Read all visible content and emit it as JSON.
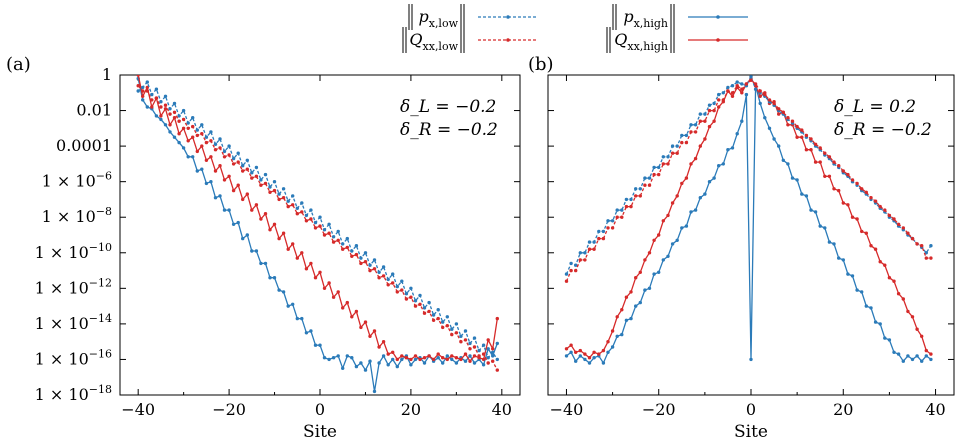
{
  "legend": [
    {
      "label": "‖p_{x,low}‖",
      "color": "#2b7bb9",
      "dash": true
    },
    {
      "label": "‖Q_{xx,low}‖",
      "color": "#d62a2a",
      "dash": true
    },
    {
      "label": "‖p_{x,high}‖",
      "color": "#2b7bb9",
      "dash": false
    },
    {
      "label": "‖Q_{xx,high}‖",
      "color": "#d62a2a",
      "dash": false
    }
  ],
  "colors": {
    "blue": "#2b7bb9",
    "red": "#d62a2a"
  },
  "chart_data": [
    {
      "type": "line",
      "panel": "(a)",
      "xlabel": "Site",
      "ylabel": "",
      "xlim": [
        -44,
        44
      ],
      "ylim": [
        1e-18,
        1
      ],
      "yscale": "log",
      "xticks": [
        -40,
        -20,
        0,
        20,
        40
      ],
      "yticks": [
        1,
        0.01,
        0.0001,
        1e-06,
        1e-08,
        1e-10,
        1e-12,
        1e-14,
        1e-16,
        1e-18
      ],
      "ytick_labels": [
        "1",
        "0.01",
        "0.0001",
        "1 × 10^{−6}",
        "1 × 10^{−8}",
        "1 × 10^{−10}",
        "1 × 10^{−12}",
        "1 × 10^{−14}",
        "1 × 10^{−16}",
        "1 × 10^{−18}"
      ],
      "annotations": [
        "δ_L = −0.2",
        "δ_R = −0.2"
      ],
      "x": [
        -40,
        -39,
        -38,
        -37,
        -36,
        -35,
        -34,
        -33,
        -32,
        -31,
        -30,
        -29,
        -28,
        -27,
        -26,
        -25,
        -24,
        -23,
        -22,
        -21,
        -20,
        -19,
        -18,
        -17,
        -16,
        -15,
        -14,
        -13,
        -12,
        -11,
        -10,
        -9,
        -8,
        -7,
        -6,
        -5,
        -4,
        -3,
        -2,
        -1,
        0,
        1,
        2,
        3,
        4,
        5,
        6,
        7,
        8,
        9,
        10,
        11,
        12,
        13,
        14,
        15,
        16,
        17,
        18,
        19,
        20,
        21,
        22,
        23,
        24,
        25,
        26,
        27,
        28,
        29,
        30,
        31,
        32,
        33,
        34,
        35,
        36,
        37,
        38,
        39
      ],
      "series": [
        {
          "name": "‖p_{x,high}‖",
          "color": "#2b7bb9",
          "dash": false,
          "log10": [
            -0.2,
            -1.4,
            -1.8,
            -1.9,
            -2.3,
            -2.5,
            -2.8,
            -3.2,
            -3.5,
            -3.8,
            -4.1,
            -4.6,
            -4.6,
            -5.4,
            -5.3,
            -6.1,
            -6.0,
            -6.9,
            -6.8,
            -7.6,
            -7.6,
            -8.4,
            -8.3,
            -9.2,
            -9.0,
            -9.9,
            -9.9,
            -10.6,
            -10.6,
            -11.4,
            -11.4,
            -12.1,
            -12.2,
            -13.0,
            -12.9,
            -13.7,
            -13.7,
            -14.5,
            -14.4,
            -15.2,
            -15.2,
            -15.9,
            -16.0,
            -15.9,
            -15.8,
            -16.5,
            -15.8,
            -15.9,
            -16.4,
            -16.2,
            -16.6,
            -16.1,
            -17.8,
            -16.2,
            -15.8,
            -16.3,
            -16.0,
            -16.4,
            -16.0,
            -15.8,
            -16.3,
            -16.0,
            -15.9,
            -16.2,
            -15.8,
            -16.1,
            -15.9,
            -16.2,
            -15.8,
            -16.0,
            -16.2,
            -15.9,
            -16.1,
            -15.8,
            -16.2,
            -16.0,
            -16.3,
            -15.4,
            -15.8,
            -15.1
          ]
        },
        {
          "name": "‖Q_{xx,high}‖",
          "color": "#d62a2a",
          "dash": false,
          "log10": [
            0.0,
            -1.2,
            -0.7,
            -1.8,
            -1.3,
            -2.3,
            -1.9,
            -2.8,
            -2.4,
            -3.3,
            -3.0,
            -3.7,
            -3.5,
            -4.3,
            -4.0,
            -4.8,
            -4.6,
            -5.4,
            -5.1,
            -5.9,
            -5.7,
            -6.5,
            -6.2,
            -7.0,
            -6.7,
            -7.6,
            -7.3,
            -8.1,
            -7.8,
            -8.7,
            -8.4,
            -9.2,
            -8.9,
            -9.8,
            -9.5,
            -10.3,
            -10.0,
            -10.9,
            -10.6,
            -11.4,
            -11.1,
            -12.0,
            -11.7,
            -12.5,
            -12.2,
            -13.1,
            -12.8,
            -13.6,
            -13.3,
            -14.2,
            -13.9,
            -14.7,
            -14.4,
            -15.3,
            -15.0,
            -15.7,
            -15.6,
            -16.0,
            -15.8,
            -15.9,
            -16.0,
            -15.8,
            -16.0,
            -15.9,
            -15.8,
            -16.0,
            -15.7,
            -15.9,
            -16.0,
            -15.8,
            -15.9,
            -16.0,
            -15.7,
            -16.1,
            -15.8,
            -15.9,
            -16.0,
            -14.9,
            -15.4,
            -13.7
          ]
        },
        {
          "name": "‖p_{x,low}‖",
          "color": "#2b7bb9",
          "dash": true,
          "log10": [
            -0.9,
            -0.7,
            -0.4,
            -1.1,
            -0.8,
            -1.5,
            -1.2,
            -1.9,
            -1.6,
            -2.3,
            -2.0,
            -2.7,
            -2.4,
            -3.1,
            -2.8,
            -3.5,
            -3.2,
            -3.9,
            -3.6,
            -4.3,
            -4.0,
            -4.7,
            -4.4,
            -5.1,
            -4.8,
            -5.5,
            -5.2,
            -5.9,
            -5.6,
            -6.3,
            -6.0,
            -6.7,
            -6.4,
            -7.1,
            -6.8,
            -7.5,
            -7.2,
            -7.9,
            -7.6,
            -8.3,
            -8.0,
            -8.7,
            -8.4,
            -9.1,
            -8.8,
            -9.5,
            -9.2,
            -9.9,
            -9.6,
            -10.3,
            -10.0,
            -10.7,
            -10.4,
            -11.1,
            -10.8,
            -11.5,
            -11.2,
            -11.9,
            -11.6,
            -12.3,
            -12.0,
            -12.7,
            -12.4,
            -13.1,
            -12.8,
            -13.5,
            -13.2,
            -13.9,
            -13.6,
            -14.3,
            -14.0,
            -14.7,
            -14.4,
            -15.1,
            -14.8,
            -15.5,
            -15.2,
            -15.9,
            -15.6,
            -16.0
          ]
        },
        {
          "name": "‖Q_{xx,low}‖",
          "color": "#d62a2a",
          "dash": true,
          "log10": [
            -0.6,
            -0.9,
            -0.9,
            -1.4,
            -1.3,
            -1.8,
            -1.7,
            -2.2,
            -2.1,
            -2.6,
            -2.5,
            -3.0,
            -2.9,
            -3.4,
            -3.3,
            -3.8,
            -3.7,
            -4.2,
            -4.1,
            -4.6,
            -4.5,
            -5.0,
            -4.9,
            -5.4,
            -5.3,
            -5.8,
            -5.7,
            -6.2,
            -6.1,
            -6.6,
            -6.5,
            -7.0,
            -6.9,
            -7.4,
            -7.3,
            -7.8,
            -7.7,
            -8.2,
            -8.1,
            -8.6,
            -8.5,
            -9.0,
            -8.9,
            -9.4,
            -9.3,
            -9.8,
            -9.7,
            -10.2,
            -10.1,
            -10.6,
            -10.5,
            -11.0,
            -10.9,
            -11.4,
            -11.3,
            -11.8,
            -11.7,
            -12.2,
            -12.1,
            -12.6,
            -12.5,
            -13.0,
            -12.9,
            -13.4,
            -13.3,
            -13.8,
            -13.7,
            -14.2,
            -14.1,
            -14.6,
            -14.5,
            -15.0,
            -14.9,
            -15.4,
            -15.3,
            -15.8,
            -15.7,
            -16.2,
            -16.1,
            -16.6
          ]
        }
      ]
    },
    {
      "type": "line",
      "panel": "(b)",
      "xlabel": "Site",
      "ylabel": "",
      "xlim": [
        -44,
        44
      ],
      "ylim": [
        1e-18,
        1
      ],
      "yscale": "log",
      "xticks": [
        -40,
        -20,
        0,
        20,
        40
      ],
      "annotations": [
        "δ_L = 0.2",
        "δ_R = −0.2"
      ],
      "x": [
        -40,
        -39,
        -38,
        -37,
        -36,
        -35,
        -34,
        -33,
        -32,
        -31,
        -30,
        -29,
        -28,
        -27,
        -26,
        -25,
        -24,
        -23,
        -22,
        -21,
        -20,
        -19,
        -18,
        -17,
        -16,
        -15,
        -14,
        -13,
        -12,
        -11,
        -10,
        -9,
        -8,
        -7,
        -6,
        -5,
        -4,
        -3,
        -2,
        -1,
        0,
        1,
        2,
        3,
        4,
        5,
        6,
        7,
        8,
        9,
        10,
        11,
        12,
        13,
        14,
        15,
        16,
        17,
        18,
        19,
        20,
        21,
        22,
        23,
        24,
        25,
        26,
        27,
        28,
        29,
        30,
        31,
        32,
        33,
        34,
        35,
        36,
        37,
        38,
        39
      ],
      "series": [
        {
          "name": "‖p_{x,high}‖",
          "color": "#2b7bb9",
          "dash": false,
          "log10": [
            -15.8,
            -15.6,
            -16.1,
            -15.8,
            -16.0,
            -16.2,
            -15.9,
            -15.8,
            -16.2,
            -15.6,
            -15.3,
            -14.7,
            -14.6,
            -13.8,
            -13.7,
            -13.0,
            -12.8,
            -12.1,
            -12.0,
            -11.2,
            -11.1,
            -10.4,
            -10.2,
            -9.5,
            -9.3,
            -8.6,
            -8.5,
            -7.7,
            -7.6,
            -6.9,
            -6.7,
            -6.0,
            -5.8,
            -5.1,
            -5.0,
            -4.2,
            -4.1,
            -3.3,
            -2.6,
            -1.1,
            -16.0,
            -0.6,
            -1.6,
            -2.4,
            -3.0,
            -3.6,
            -4.0,
            -4.8,
            -5.0,
            -5.8,
            -5.9,
            -6.7,
            -6.8,
            -7.6,
            -7.7,
            -8.5,
            -8.6,
            -9.4,
            -9.5,
            -10.3,
            -10.4,
            -11.2,
            -11.3,
            -12.1,
            -12.2,
            -13.0,
            -13.1,
            -13.9,
            -14.0,
            -14.8,
            -14.9,
            -15.6,
            -15.7,
            -16.1,
            -15.8,
            -16.0,
            -15.8,
            -16.1,
            -15.8,
            -16.0
          ]
        },
        {
          "name": "‖Q_{xx,high}‖",
          "color": "#d62a2a",
          "dash": false,
          "log10": [
            -15.4,
            -15.2,
            -15.6,
            -15.5,
            -15.7,
            -15.9,
            -15.6,
            -15.7,
            -15.5,
            -15.0,
            -14.4,
            -13.6,
            -13.2,
            -12.5,
            -12.2,
            -11.4,
            -11.1,
            -10.4,
            -10.0,
            -9.3,
            -9.0,
            -8.2,
            -7.9,
            -7.2,
            -6.8,
            -6.1,
            -5.8,
            -5.0,
            -4.7,
            -4.0,
            -3.6,
            -2.9,
            -2.6,
            -1.8,
            -1.5,
            -0.9,
            -1.2,
            -0.7,
            -1.0,
            -0.5,
            -0.2,
            -0.6,
            -1.2,
            -1.0,
            -1.6,
            -1.5,
            -2.2,
            -2.1,
            -2.8,
            -2.8,
            -3.5,
            -3.5,
            -4.2,
            -4.2,
            -4.9,
            -4.9,
            -5.7,
            -5.7,
            -6.4,
            -6.5,
            -7.2,
            -7.3,
            -8.0,
            -8.1,
            -8.8,
            -8.9,
            -9.6,
            -9.8,
            -10.5,
            -10.7,
            -11.4,
            -11.6,
            -12.3,
            -12.6,
            -13.3,
            -13.6,
            -14.3,
            -14.7,
            -15.5,
            -15.7
          ]
        },
        {
          "name": "‖p_{x,low}‖",
          "color": "#2b7bb9",
          "dash": true,
          "log10": [
            -11.2,
            -10.6,
            -10.7,
            -10.0,
            -10.0,
            -9.4,
            -9.4,
            -8.8,
            -8.8,
            -8.2,
            -8.2,
            -7.6,
            -7.6,
            -7.0,
            -7.0,
            -6.4,
            -6.4,
            -5.8,
            -5.8,
            -5.2,
            -5.2,
            -4.6,
            -4.6,
            -4.0,
            -4.0,
            -3.4,
            -3.4,
            -2.8,
            -2.8,
            -2.2,
            -2.2,
            -1.7,
            -1.6,
            -1.1,
            -1.0,
            -0.7,
            -0.6,
            -0.4,
            -0.5,
            -0.6,
            -0.1,
            -0.8,
            -1.0,
            -1.2,
            -1.5,
            -1.7,
            -2.0,
            -2.2,
            -2.5,
            -2.7,
            -3.0,
            -3.2,
            -3.5,
            -3.7,
            -4.0,
            -4.2,
            -4.5,
            -4.7,
            -5.0,
            -5.2,
            -5.5,
            -5.7,
            -6.0,
            -6.2,
            -6.5,
            -6.7,
            -7.0,
            -7.2,
            -7.5,
            -7.7,
            -8.0,
            -8.2,
            -8.5,
            -8.7,
            -9.0,
            -9.2,
            -9.5,
            -9.7,
            -10.0,
            -9.6
          ]
        },
        {
          "name": "‖Q_{xx,low}‖",
          "color": "#d62a2a",
          "dash": true,
          "log10": [
            -11.6,
            -11.0,
            -11.0,
            -10.4,
            -10.4,
            -9.8,
            -9.8,
            -9.2,
            -9.2,
            -8.6,
            -8.6,
            -8.0,
            -8.0,
            -7.4,
            -7.4,
            -6.8,
            -6.8,
            -6.2,
            -6.2,
            -5.6,
            -5.6,
            -5.0,
            -5.0,
            -4.4,
            -4.4,
            -3.8,
            -3.8,
            -3.2,
            -3.2,
            -2.6,
            -2.6,
            -2.0,
            -2.0,
            -1.4,
            -1.4,
            -0.9,
            -1.0,
            -0.6,
            -0.8,
            -0.5,
            -0.3,
            -0.5,
            -0.9,
            -1.1,
            -1.4,
            -1.6,
            -1.9,
            -2.1,
            -2.4,
            -2.6,
            -2.9,
            -3.1,
            -3.4,
            -3.6,
            -3.9,
            -4.1,
            -4.4,
            -4.6,
            -4.9,
            -5.1,
            -5.4,
            -5.6,
            -5.9,
            -6.1,
            -6.4,
            -6.6,
            -6.9,
            -7.1,
            -7.4,
            -7.6,
            -7.9,
            -8.1,
            -8.4,
            -8.6,
            -8.9,
            -9.2,
            -9.5,
            -9.6,
            -10.3,
            -10.3
          ]
        }
      ]
    }
  ]
}
